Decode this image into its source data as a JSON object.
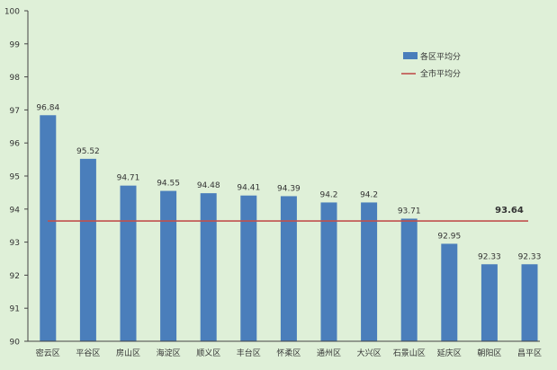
{
  "chart_data": {
    "type": "bar",
    "title": "",
    "xlabel": "",
    "ylabel": "",
    "categories": [
      "密云区",
      "平谷区",
      "房山区",
      "海淀区",
      "顺义区",
      "丰台区",
      "怀柔区",
      "通州区",
      "大兴区",
      "石景山区",
      "延庆区",
      "朝阳区",
      "昌平区"
    ],
    "series": [
      {
        "name": "各区平均分",
        "values": [
          96.84,
          95.52,
          94.71,
          94.55,
          94.48,
          94.41,
          94.39,
          94.2,
          94.2,
          93.71,
          92.95,
          92.33,
          92.33
        ],
        "labels": [
          "96.84",
          "95.52",
          "94.71",
          "94.55",
          "94.48",
          "94.41",
          "94.39",
          "94.2",
          "94.2",
          "93.71",
          "92.95",
          "92.33",
          "92.33"
        ],
        "color": "#4a7ebb"
      }
    ],
    "reference_line": {
      "name": "全市平均分",
      "value": 93.64,
      "label": "93.64",
      "color": "#c0504d"
    },
    "ylim": [
      90,
      100
    ],
    "yticks": [
      "90",
      "91",
      "92",
      "93",
      "94",
      "95",
      "96",
      "97",
      "98",
      "99",
      "100"
    ],
    "grid": false,
    "legend_position": "right",
    "background_color": "#dff0d8"
  }
}
